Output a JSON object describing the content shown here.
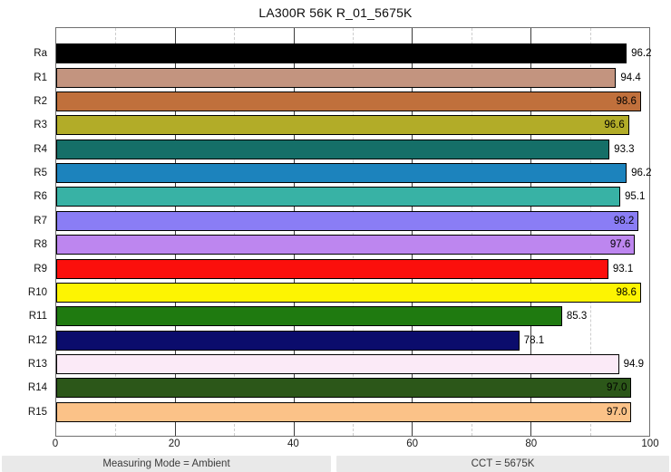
{
  "title": "LA300R 56K R_01_5675K",
  "footer": {
    "left": "Measuring Mode = Ambient",
    "right": "CCT = 5675K"
  },
  "chart_data": {
    "type": "bar",
    "orientation": "horizontal",
    "title": "LA300R 56K R_01_5675K",
    "categories": [
      "Ra",
      "R1",
      "R2",
      "R3",
      "R4",
      "R5",
      "R6",
      "R7",
      "R8",
      "R9",
      "R10",
      "R11",
      "R12",
      "R13",
      "R14",
      "R15"
    ],
    "values": [
      96.2,
      94.4,
      98.6,
      96.6,
      93.3,
      96.2,
      95.1,
      98.2,
      97.6,
      93.1,
      98.6,
      85.3,
      78.1,
      94.9,
      97.0,
      97.0
    ],
    "value_labels": [
      "96.2",
      "94.4",
      "98.6",
      "96.6",
      "93.3",
      "96.2",
      "95.1",
      "98.2",
      "97.6",
      "93.1",
      "98.6",
      "85.3",
      "78.1",
      "94.9",
      "97.0",
      "97.0"
    ],
    "label_inside": [
      false,
      false,
      true,
      true,
      false,
      false,
      false,
      true,
      true,
      false,
      true,
      false,
      false,
      false,
      true,
      true
    ],
    "bar_colors": [
      "#000000",
      "#c3947f",
      "#c0703c",
      "#b2ac28",
      "#156f68",
      "#1c83bd",
      "#38b2a5",
      "#8a7df5",
      "#bd86ef",
      "#fb0f0c",
      "#fdf402",
      "#1f7a10",
      "#0b0c6c",
      "#fbeaf7",
      "#2c5719",
      "#fbc288"
    ],
    "bar_border_color": "#000000",
    "xlabel": "",
    "ylabel": "",
    "xlim": [
      0,
      100
    ],
    "x_major_ticks": [
      0,
      20,
      40,
      60,
      80,
      100
    ],
    "x_minor_gridlines": [
      10,
      30,
      50,
      70,
      90
    ],
    "grid": "vertical: major solid, minor dashed",
    "legend": "none"
  }
}
